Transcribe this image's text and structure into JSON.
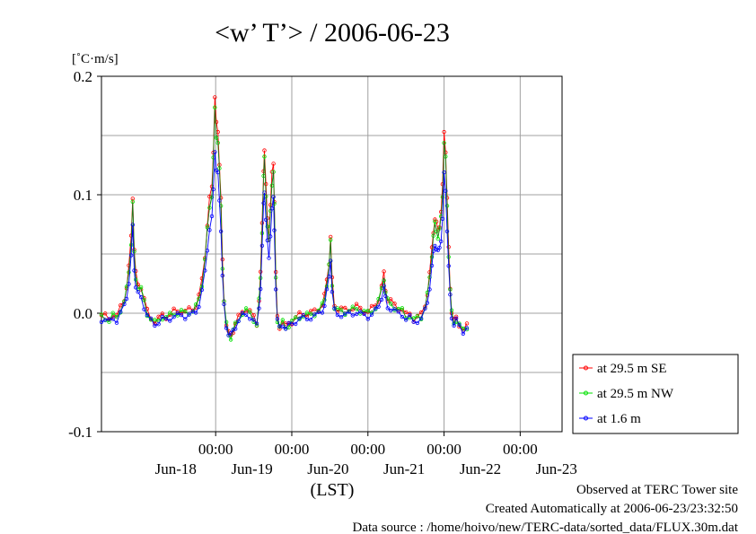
{
  "chart_data": {
    "type": "line",
    "title": "<w’ T’> / 2006-06-23",
    "unit_label": "[˚C·m/s]",
    "xlabel": "(LST)",
    "ylim": [
      -0.1,
      0.2
    ],
    "xlim_days": [
      17.5,
      23.55
    ],
    "y_ticks": [
      {
        "v": 0.2,
        "label": "0.2"
      },
      {
        "v": 0.1,
        "label": "0.1"
      },
      {
        "v": 0.0,
        "label": "0.0"
      },
      {
        "v": -0.1,
        "label": "-0.1"
      }
    ],
    "y_minor_ticks": [
      0.15,
      0.05,
      -0.05
    ],
    "x_ticks": [
      {
        "v": 19.0,
        "label": "00:00",
        "date": "Jun-18"
      },
      {
        "v": 20.0,
        "label": "00:00",
        "date": "Jun-19"
      },
      {
        "v": 21.0,
        "label": "00:00",
        "date": "Jun-20"
      },
      {
        "v": 22.0,
        "label": "00:00",
        "date": "Jun-21"
      },
      {
        "v": 23.0,
        "label": "00:00",
        "date": "Jun-22"
      }
    ],
    "x_date_labels": [
      {
        "v": 18.5,
        "label": "Jun-18"
      },
      {
        "v": 19.5,
        "label": "Jun-19"
      },
      {
        "v": 20.5,
        "label": "Jun-20"
      },
      {
        "v": 21.5,
        "label": "Jun-21"
      },
      {
        "v": 22.5,
        "label": "Jun-22"
      },
      {
        "v": 23.5,
        "label": "Jun-23"
      }
    ],
    "grid": true,
    "legend_position": "right",
    "series": [
      {
        "name": "at 29.5 m SE",
        "color": "#ff0000",
        "offset": 0.0015,
        "scale": 1.05
      },
      {
        "name": "at 29.5 m NW",
        "color": "#00e000",
        "offset": 0.0,
        "scale": 1.0
      },
      {
        "name": "at 1.6 m",
        "color": "#0000ff",
        "offset": -0.0025,
        "scale": 0.82
      }
    ],
    "base_points": [
      [
        17.5,
        -0.003
      ],
      [
        17.55,
        -0.004
      ],
      [
        17.6,
        -0.006
      ],
      [
        17.65,
        -0.002
      ],
      [
        17.7,
        -0.004
      ],
      [
        17.75,
        0.003
      ],
      [
        17.8,
        0.01
      ],
      [
        17.83,
        0.02
      ],
      [
        17.86,
        0.035
      ],
      [
        17.89,
        0.06
      ],
      [
        17.91,
        0.093
      ],
      [
        17.93,
        0.05
      ],
      [
        17.95,
        0.03
      ],
      [
        17.98,
        0.022
      ],
      [
        18.02,
        0.02
      ],
      [
        18.06,
        0.01
      ],
      [
        18.1,
        0.0
      ],
      [
        18.15,
        -0.005
      ],
      [
        18.2,
        -0.008
      ],
      [
        18.25,
        -0.006
      ],
      [
        18.3,
        -0.003
      ],
      [
        18.35,
        -0.004
      ],
      [
        18.4,
        -0.002
      ],
      [
        18.45,
        0.0
      ],
      [
        18.5,
        0.0
      ],
      [
        18.55,
        0.001
      ],
      [
        18.6,
        0.0
      ],
      [
        18.65,
        0.001
      ],
      [
        18.7,
        0.002
      ],
      [
        18.74,
        0.005
      ],
      [
        18.78,
        0.012
      ],
      [
        18.82,
        0.025
      ],
      [
        18.86,
        0.045
      ],
      [
        18.89,
        0.07
      ],
      [
        18.92,
        0.09
      ],
      [
        18.95,
        0.1
      ],
      [
        18.97,
        0.13
      ],
      [
        18.99,
        0.172
      ],
      [
        19.01,
        0.15
      ],
      [
        19.03,
        0.145
      ],
      [
        19.05,
        0.12
      ],
      [
        19.07,
        0.09
      ],
      [
        19.09,
        0.04
      ],
      [
        19.11,
        0.01
      ],
      [
        19.14,
        -0.01
      ],
      [
        19.17,
        -0.018
      ],
      [
        19.2,
        -0.02
      ],
      [
        19.23,
        -0.015
      ],
      [
        19.26,
        -0.01
      ],
      [
        19.3,
        -0.005
      ],
      [
        19.35,
        0.0
      ],
      [
        19.4,
        0.002
      ],
      [
        19.45,
        0.0
      ],
      [
        19.5,
        -0.005
      ],
      [
        19.54,
        -0.01
      ],
      [
        19.57,
        0.01
      ],
      [
        19.59,
        0.03
      ],
      [
        19.61,
        0.07
      ],
      [
        19.63,
        0.115
      ],
      [
        19.64,
        0.13
      ],
      [
        19.66,
        0.1
      ],
      [
        19.68,
        0.075
      ],
      [
        19.7,
        0.06
      ],
      [
        19.72,
        0.085
      ],
      [
        19.74,
        0.11
      ],
      [
        19.76,
        0.12
      ],
      [
        19.77,
        0.09
      ],
      [
        19.79,
        0.03
      ],
      [
        19.81,
        -0.005
      ],
      [
        19.84,
        -0.012
      ],
      [
        19.88,
        -0.008
      ],
      [
        19.92,
        -0.012
      ],
      [
        19.96,
        -0.01
      ],
      [
        20.0,
        -0.008
      ],
      [
        20.05,
        -0.005
      ],
      [
        20.1,
        -0.003
      ],
      [
        20.15,
        -0.002
      ],
      [
        20.2,
        -0.002
      ],
      [
        20.25,
        -0.001
      ],
      [
        20.3,
        0.0
      ],
      [
        20.35,
        0.002
      ],
      [
        20.4,
        0.006
      ],
      [
        20.43,
        0.012
      ],
      [
        20.46,
        0.025
      ],
      [
        20.49,
        0.04
      ],
      [
        20.51,
        0.06
      ],
      [
        20.53,
        0.025
      ],
      [
        20.56,
        0.005
      ],
      [
        20.6,
        0.002
      ],
      [
        20.65,
        0.002
      ],
      [
        20.7,
        0.001
      ],
      [
        20.75,
        0.002
      ],
      [
        20.8,
        0.003
      ],
      [
        20.85,
        0.004
      ],
      [
        20.9,
        0.002
      ],
      [
        20.95,
        0.001
      ],
      [
        21.0,
        0.0
      ],
      [
        21.05,
        0.002
      ],
      [
        21.1,
        0.005
      ],
      [
        21.14,
        0.01
      ],
      [
        21.18,
        0.02
      ],
      [
        21.21,
        0.03
      ],
      [
        21.23,
        0.018
      ],
      [
        21.26,
        0.01
      ],
      [
        21.3,
        0.008
      ],
      [
        21.35,
        0.005
      ],
      [
        21.4,
        0.003
      ],
      [
        21.45,
        0.002
      ],
      [
        21.5,
        -0.003
      ],
      [
        21.55,
        -0.002
      ],
      [
        21.6,
        -0.006
      ],
      [
        21.65,
        -0.004
      ],
      [
        21.7,
        -0.003
      ],
      [
        21.75,
        0.005
      ],
      [
        21.78,
        0.015
      ],
      [
        21.81,
        0.03
      ],
      [
        21.84,
        0.05
      ],
      [
        21.86,
        0.065
      ],
      [
        21.88,
        0.075
      ],
      [
        21.9,
        0.07
      ],
      [
        21.92,
        0.065
      ],
      [
        21.94,
        0.07
      ],
      [
        21.96,
        0.08
      ],
      [
        21.98,
        0.1
      ],
      [
        22.0,
        0.145
      ],
      [
        22.02,
        0.13
      ],
      [
        22.04,
        0.09
      ],
      [
        22.06,
        0.05
      ],
      [
        22.08,
        0.02
      ],
      [
        22.1,
        0.0
      ],
      [
        22.13,
        -0.008
      ],
      [
        22.16,
        -0.005
      ],
      [
        22.2,
        -0.01
      ],
      [
        22.25,
        -0.015
      ],
      [
        22.3,
        -0.012
      ]
    ]
  },
  "footer": {
    "observed": "Observed at TERC Tower site",
    "created": "Created Automatically at 2006-06-23/23:32:50",
    "source": "Data source : /home/hoivo/new/TERC-data/sorted_data/FLUX.30m.dat"
  }
}
